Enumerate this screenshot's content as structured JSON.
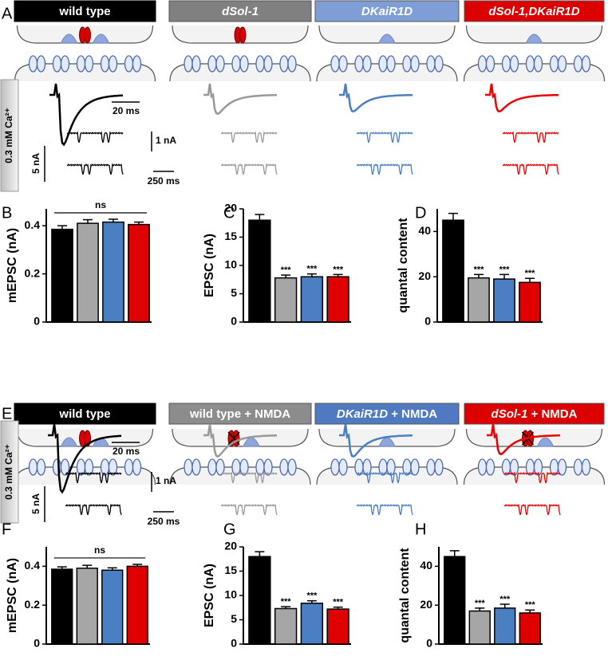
{
  "panel_labels": [
    "A",
    "B",
    "C",
    "D",
    "E",
    "F",
    "G",
    "H"
  ],
  "top_headers": [
    "wild type",
    "dSol-1",
    "DKaiR1D",
    "dSol-1,DKaiR1D"
  ],
  "bottom_headers": [
    [
      "wild type"
    ],
    [
      "wild type + NMDA"
    ],
    [
      "DKaiR1D",
      " + NMDA"
    ],
    [
      "dSol-1",
      " + NMDA"
    ]
  ],
  "calcium_label": "0.3 mM Ca²⁺",
  "scale_bars": [
    [
      "20 ms",
      "1 nA",
      "5 nA",
      "250 ms"
    ],
    [
      "20 ms",
      "1 nA",
      "5 nA",
      "250 ms"
    ]
  ],
  "chart_data": [
    {
      "type": "bar",
      "ylabel": "mEPSC (nA)",
      "values": [
        0.385,
        0.41,
        0.415,
        0.405
      ],
      "errors": [
        0.015,
        0.015,
        0.012,
        0.01
      ],
      "colors": [
        "#000000",
        "#a6a6a6",
        "#4a7fc1",
        "#e00000"
      ],
      "ylim": [
        0,
        0.47
      ],
      "yticks": [
        0,
        0.2,
        0.4
      ],
      "annotation": "ns"
    },
    {
      "type": "bar",
      "ylabel": "EPSC (nA)",
      "values": [
        18,
        7.8,
        8,
        8
      ],
      "errors": [
        1,
        0.5,
        0.5,
        0.4
      ],
      "colors": [
        "#000000",
        "#a6a6a6",
        "#4a7fc1",
        "#e00000"
      ],
      "ylim": [
        0,
        20
      ],
      "yticks": [
        0,
        5,
        10,
        15,
        20
      ],
      "significance": [
        null,
        "***",
        "***",
        "***"
      ]
    },
    {
      "type": "bar",
      "ylabel": "quantal content",
      "values": [
        45,
        19.5,
        19,
        17.5
      ],
      "errors": [
        3,
        1.5,
        2,
        1.8
      ],
      "colors": [
        "#000000",
        "#a6a6a6",
        "#4a7fc1",
        "#e00000"
      ],
      "ylim": [
        0,
        50
      ],
      "yticks": [
        0,
        20,
        40
      ],
      "significance": [
        null,
        "***",
        "***",
        "***"
      ]
    },
    {
      "type": "bar",
      "ylabel": "mEPSC (nA)",
      "values": [
        0.385,
        0.39,
        0.38,
        0.4
      ],
      "errors": [
        0.012,
        0.015,
        0.012,
        0.01
      ],
      "colors": [
        "#000000",
        "#a6a6a6",
        "#4a7fc1",
        "#e00000"
      ],
      "ylim": [
        0,
        0.5
      ],
      "yticks": [
        0,
        0.2,
        0.4
      ],
      "annotation": "ns"
    },
    {
      "type": "bar",
      "ylabel": "EPSC (nA)",
      "values": [
        18,
        7.3,
        8.4,
        7.2
      ],
      "errors": [
        1,
        0.4,
        0.5,
        0.4
      ],
      "colors": [
        "#000000",
        "#a6a6a6",
        "#4a7fc1",
        "#e00000"
      ],
      "ylim": [
        0,
        20
      ],
      "yticks": [
        0,
        5,
        10,
        15,
        20
      ],
      "significance": [
        null,
        "***",
        "***",
        "***"
      ]
    },
    {
      "type": "bar",
      "ylabel": "quantal content",
      "values": [
        45,
        17,
        18.5,
        16
      ],
      "errors": [
        3,
        1.5,
        2,
        1.5
      ],
      "colors": [
        "#000000",
        "#a6a6a6",
        "#4a7fc1",
        "#e00000"
      ],
      "ylim": [
        0,
        50
      ],
      "yticks": [
        0,
        20,
        40
      ],
      "significance": [
        null,
        "***",
        "***",
        "***"
      ]
    }
  ]
}
